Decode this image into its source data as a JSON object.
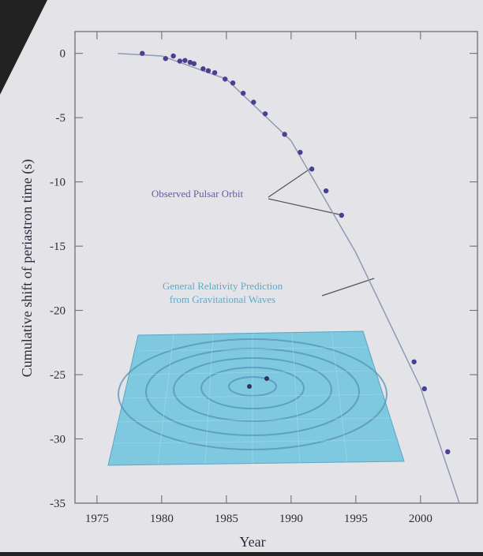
{
  "chart_data": {
    "type": "scatter",
    "x_label": "Year",
    "y_label": "Cumulative shift of periastron time (s)",
    "xlim": [
      1973.3,
      2004.4
    ],
    "ylim": [
      -35,
      1.7
    ],
    "xticks": [
      1975,
      1980,
      1985,
      1990,
      1995,
      2000
    ],
    "yticks": [
      0,
      -5,
      -10,
      -15,
      -20,
      -25,
      -30,
      -35
    ],
    "annotations": [
      "Observed Pulsar Orbit",
      "General Relativity Prediction",
      "from Gravitational Waves"
    ],
    "series": [
      {
        "type": "line",
        "color": "#8c9bb4",
        "x": [
          1976.6,
          1980,
          1985,
          1990,
          1995,
          2000,
          2003
        ],
        "values": [
          0,
          -0.2,
          -2,
          -6.8,
          -15.5,
          -26,
          -35
        ]
      },
      {
        "type": "scatter",
        "color": "#4b3f90",
        "x": [
          1978.5,
          1980.3,
          1980.9,
          1981.4,
          1981.8,
          1982.2,
          1982.5,
          1983.2,
          1983.6,
          1984.1,
          1984.9,
          1985.5,
          1986.3,
          1987.1,
          1988.0,
          1989.5,
          1990.7,
          1991.6,
          1992.7,
          1993.9,
          1999.5,
          2000.3,
          2002.1
        ],
        "values": [
          0,
          -0.4,
          -0.2,
          -0.6,
          -0.55,
          -0.7,
          -0.8,
          -1.2,
          -1.35,
          -1.5,
          -2.0,
          -2.3,
          -3.1,
          -3.8,
          -4.7,
          -6.3,
          -7.7,
          -9.0,
          -10.7,
          -12.6,
          -24,
          -26.1,
          -31
        ]
      }
    ]
  }
}
